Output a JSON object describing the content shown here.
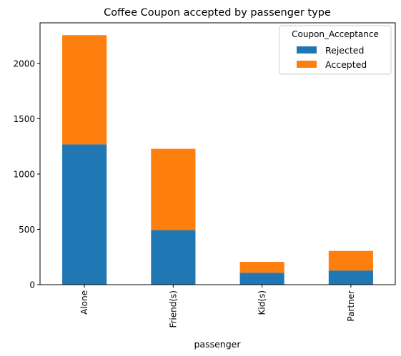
{
  "chart_data": {
    "type": "bar",
    "stacked": true,
    "title": "Coffee Coupon accepted by passenger type",
    "xlabel": "passenger",
    "ylabel": "",
    "categories": [
      "Alone",
      "Friend(s)",
      "Kid(s)",
      "Partner"
    ],
    "series": [
      {
        "name": "Rejected",
        "values": [
          1268,
          493,
          108,
          128
        ],
        "color": "#1f77b4"
      },
      {
        "name": "Accepted",
        "values": [
          988,
          735,
          98,
          177
        ],
        "color": "#ff7f0e"
      }
    ],
    "ylim": [
      0,
      2367
    ],
    "yticks": [
      0,
      500,
      1000,
      1500,
      2000
    ],
    "grid": false,
    "legend": {
      "title": "Coupon_Acceptance",
      "position": "top-right",
      "entries": [
        "Rejected",
        "Accepted"
      ]
    }
  }
}
